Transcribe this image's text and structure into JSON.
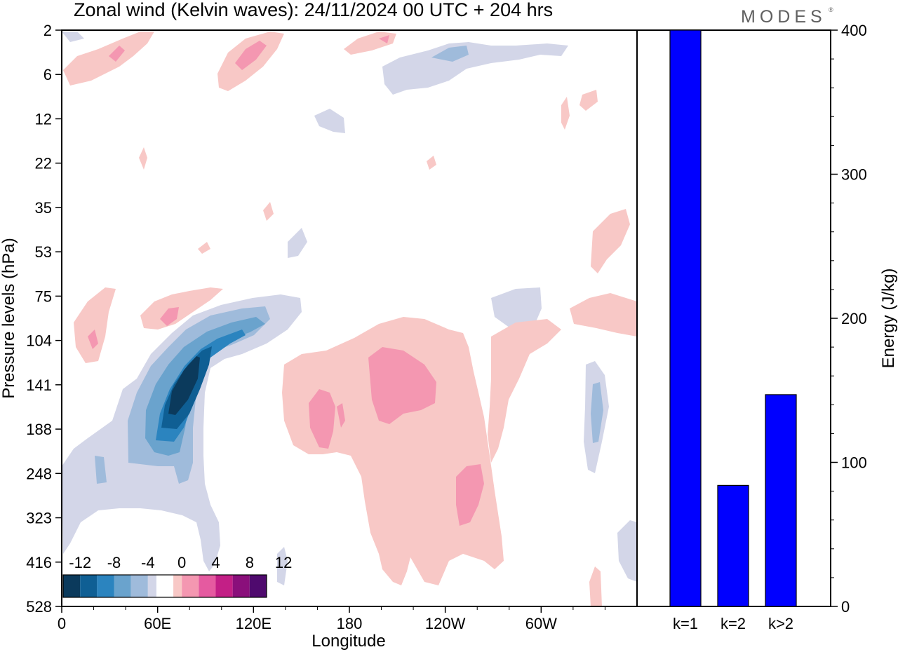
{
  "title": "Zonal wind (Kelvin waves):  24/11/2024  00 UTC  + 204 hrs",
  "brand": "MODES",
  "brand_mark": "®",
  "colors": {
    "neg": [
      "#0b3a5c",
      "#0f5f94",
      "#2b84bf",
      "#6aa3cd",
      "#9fbbdb",
      "#d3d6e8"
    ],
    "pos": [
      "#f8c8c6",
      "#f497b1",
      "#e55aa0",
      "#c31f86",
      "#8a0f7b",
      "#4f0a6e"
    ],
    "bar": "#0000ff"
  },
  "chart_data": [
    {
      "type": "heatmap",
      "title": "Zonal wind (Kelvin waves):  24/11/2024  00 UTC  + 204 hrs",
      "xlabel": "Longitude",
      "ylabel": "Pressure levels (hPa)",
      "x_ticks": [
        "0",
        "60E",
        "120E",
        "180",
        "120W",
        "60W"
      ],
      "y_ticks": [
        "2",
        "6",
        "12",
        "22",
        "35",
        "53",
        "75",
        "104",
        "141",
        "188",
        "248",
        "323",
        "416",
        "528"
      ],
      "xlim_deg_east": [
        0,
        360
      ],
      "colorbar_levels": [
        -12,
        -8,
        -4,
        0,
        4,
        8,
        12
      ],
      "colorbar_labels": [
        "-12",
        "-8",
        "-4",
        "0",
        "4",
        "8",
        "12"
      ],
      "features": [
        {
          "sign": "negative",
          "lon": 72,
          "level_hPa": 141,
          "peak": -14
        },
        {
          "sign": "positive",
          "lon": 200,
          "level_hPa": 141,
          "peak": 6
        },
        {
          "sign": "positive",
          "lon": 255,
          "level_hPa": 290,
          "peak": 6
        }
      ]
    },
    {
      "type": "bar",
      "categories": [
        "k=1",
        "k=2",
        "k>2"
      ],
      "values": [
        400,
        84,
        147
      ],
      "ylabel": "Energy (J/kg)",
      "ylim": [
        0,
        400
      ],
      "y_ticks": [
        "0",
        "100",
        "200",
        "300",
        "400"
      ]
    }
  ]
}
